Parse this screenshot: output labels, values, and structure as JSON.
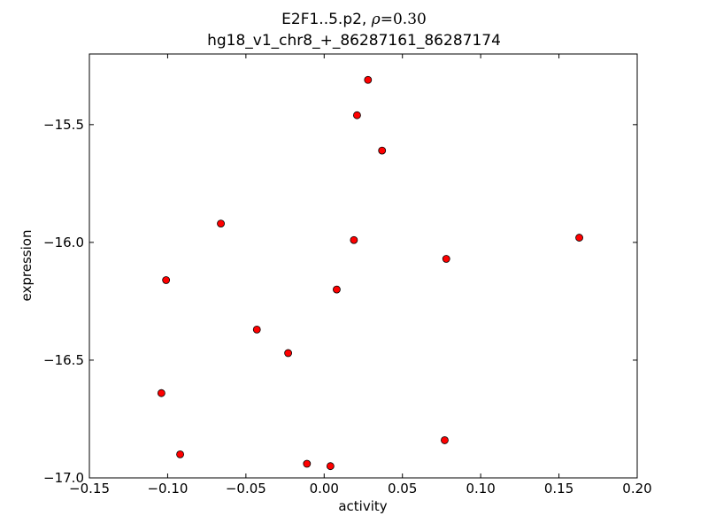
{
  "chart_data": {
    "type": "scatter",
    "title": {
      "line1_prefix": "E2F1..5.p2,",
      "rho_symbol": "ρ",
      "rho_value": "=0.30",
      "line2": "hg18_v1_chr8_+_86287161_86287174"
    },
    "xlabel": "activity",
    "ylabel": "expression",
    "xlim": [
      -0.15,
      0.2
    ],
    "ylim": [
      -17.0,
      -15.2
    ],
    "xticks": [
      -0.15,
      -0.1,
      -0.05,
      0.0,
      0.05,
      0.1,
      0.15,
      0.2
    ],
    "xtick_labels": [
      "−0.15",
      "−0.10",
      "−0.05",
      "0.00",
      "0.05",
      "0.10",
      "0.15",
      "0.20"
    ],
    "yticks": [
      -17.0,
      -16.5,
      -16.0,
      -15.5
    ],
    "ytick_labels": [
      "−17.0",
      "−16.5",
      "−16.0",
      "−15.5"
    ],
    "grid": false,
    "marker_color": "#ff0000",
    "marker_edge_color": "#000000",
    "points": [
      {
        "x": 0.028,
        "y": -15.31
      },
      {
        "x": 0.021,
        "y": -15.46
      },
      {
        "x": 0.037,
        "y": -15.61
      },
      {
        "x": -0.066,
        "y": -15.92
      },
      {
        "x": 0.019,
        "y": -15.99
      },
      {
        "x": 0.163,
        "y": -15.98
      },
      {
        "x": 0.078,
        "y": -16.07
      },
      {
        "x": -0.101,
        "y": -16.16
      },
      {
        "x": 0.008,
        "y": -16.2
      },
      {
        "x": -0.043,
        "y": -16.37
      },
      {
        "x": -0.023,
        "y": -16.47
      },
      {
        "x": -0.104,
        "y": -16.64
      },
      {
        "x": 0.077,
        "y": -16.84
      },
      {
        "x": -0.092,
        "y": -16.9
      },
      {
        "x": -0.011,
        "y": -16.94
      },
      {
        "x": 0.004,
        "y": -16.95
      }
    ]
  }
}
